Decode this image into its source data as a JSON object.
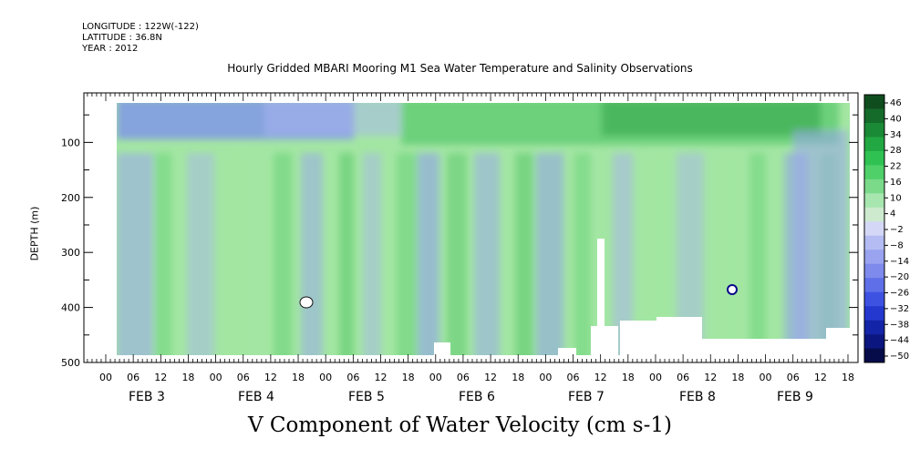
{
  "header": {
    "longitude": "LONGITUDE : 122W(-122)",
    "latitude": "LATITUDE : 36.8N",
    "year": "YEAR : 2012",
    "title": "Hourly Gridded MBARI Mooring M1 Sea Water Temperature and Salinity Observations"
  },
  "chart_data": {
    "type": "heatmap",
    "title": "Hourly Gridded MBARI Mooring M1 Sea Water Temperature and Salinity Observations",
    "xlabel": "V Component of Water Velocity (cm s-1)",
    "ylabel": "DEPTH (m)",
    "y_axis": {
      "ticks": [
        100,
        200,
        300,
        400,
        500
      ],
      "range": [
        10,
        500
      ],
      "inverted": true
    },
    "x_axis": {
      "hour_labels": [
        "00",
        "06",
        "12",
        "18",
        "00",
        "06",
        "12",
        "18",
        "00",
        "06",
        "12",
        "18",
        "00",
        "06",
        "12",
        "18",
        "00",
        "06",
        "12",
        "18",
        "00",
        "06",
        "12",
        "18",
        "00",
        "06",
        "12",
        "18"
      ],
      "date_labels": [
        "FEB 3",
        "FEB 4",
        "FEB 5",
        "FEB 6",
        "FEB 7",
        "FEB 8",
        "FEB 9"
      ]
    },
    "colorbar": {
      "labels": [
        46,
        40,
        34,
        28,
        22,
        16,
        10,
        4,
        -2,
        -8,
        -14,
        -20,
        -26,
        -32,
        -38,
        -44,
        -50
      ],
      "range": [
        -50,
        50
      ]
    },
    "grid": false
  }
}
